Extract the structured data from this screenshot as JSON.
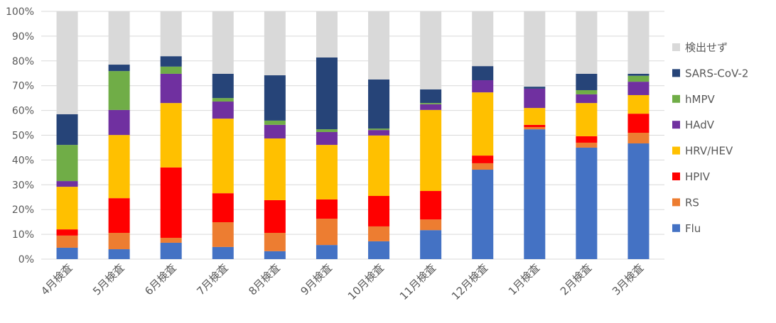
{
  "chart_data": {
    "type": "bar",
    "stacked": true,
    "title": "",
    "xlabel": "",
    "ylabel": "",
    "ylim": [
      0,
      100
    ],
    "yticks": [
      "0%",
      "10%",
      "20%",
      "30%",
      "40%",
      "50%",
      "60%",
      "70%",
      "80%",
      "90%",
      "100%"
    ],
    "grid": true,
    "legend_position": "right",
    "categories": [
      "4月検査",
      "5月検査",
      "6月検査",
      "7月検査",
      "8月検査",
      "9月検査",
      "10月検査",
      "11月検査",
      "12月検査",
      "1月検査",
      "2月検査",
      "3月検査"
    ],
    "series": [
      {
        "name": "Flu",
        "color": "#4472C4",
        "values": [
          4.6,
          4.0,
          6.6,
          4.9,
          3.2,
          5.7,
          7.2,
          11.7,
          36.1,
          52.4,
          45.0,
          46.7
        ]
      },
      {
        "name": "RS",
        "color": "#ED7D31",
        "values": [
          4.9,
          6.6,
          2.0,
          10.0,
          7.4,
          10.6,
          6.0,
          4.3,
          2.6,
          0.9,
          2.0,
          4.3
        ]
      },
      {
        "name": "HPIV",
        "color": "#FF0000",
        "values": [
          2.5,
          14.0,
          28.4,
          11.7,
          13.2,
          7.8,
          12.3,
          11.5,
          3.1,
          0.9,
          2.6,
          7.7
        ]
      },
      {
        "name": "HRV/HEV",
        "color": "#FFC000",
        "values": [
          17.2,
          25.5,
          26.0,
          30.1,
          24.9,
          22.0,
          24.4,
          32.7,
          25.5,
          6.8,
          13.4,
          7.5
        ]
      },
      {
        "name": "HAdV",
        "color": "#7030A0",
        "values": [
          2.3,
          10.1,
          11.8,
          6.9,
          5.5,
          5.2,
          2.2,
          2.3,
          4.9,
          7.8,
          3.5,
          5.4
        ]
      },
      {
        "name": "hMPV",
        "color": "#70AD47",
        "values": [
          14.6,
          15.7,
          2.9,
          1.4,
          1.7,
          1.1,
          0.6,
          0.5,
          0,
          0,
          1.7,
          2.4
        ]
      },
      {
        "name": "SARS-CoV-2",
        "color": "#264478",
        "values": [
          12.4,
          2.6,
          4.2,
          9.8,
          18.3,
          29.0,
          19.8,
          5.5,
          5.7,
          0.8,
          6.6,
          0.8
        ]
      },
      {
        "name": "検出せず",
        "color": "#D9D9D9",
        "values": [
          41.5,
          21.5,
          18.1,
          25.2,
          25.8,
          18.6,
          27.5,
          31.5,
          22.1,
          30.4,
          25.2,
          25.2
        ]
      }
    ]
  }
}
